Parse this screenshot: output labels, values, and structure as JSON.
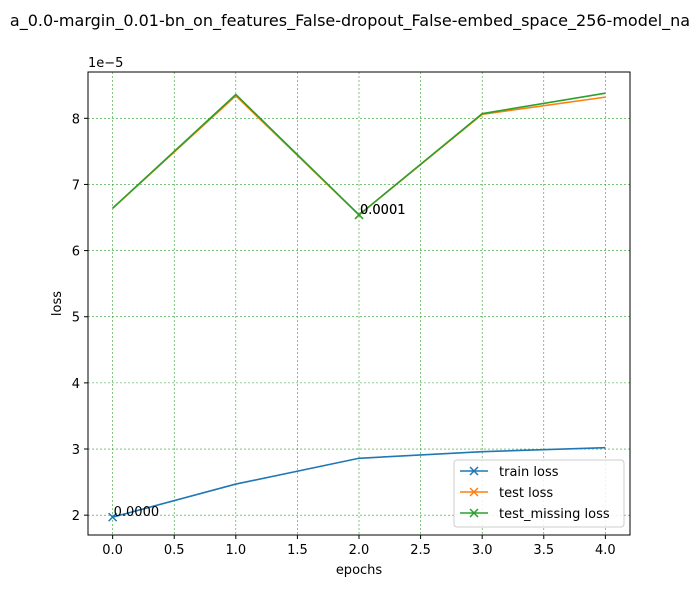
{
  "chart_data": {
    "type": "line",
    "title": "a_0.0-margin_0.01-bn_on_features_False-dropout_False-embed_space_256-model_na",
    "xlabel": "epochs",
    "ylabel": "loss",
    "y_exponent_label": "1e−5",
    "xlim": [
      -0.2,
      4.2
    ],
    "ylim": [
      1.7,
      8.7
    ],
    "y_scale_note": "values in units of 1e-5",
    "x_ticks": [
      0.0,
      0.5,
      1.0,
      1.5,
      2.0,
      2.5,
      3.0,
      3.5,
      4.0
    ],
    "x_tick_labels": [
      "0.0",
      "0.5",
      "1.0",
      "1.5",
      "2.0",
      "2.5",
      "3.0",
      "3.5",
      "4.0"
    ],
    "y_ticks": [
      2,
      3,
      4,
      5,
      6,
      7,
      8
    ],
    "y_tick_labels": [
      "2",
      "3",
      "4",
      "5",
      "6",
      "7",
      "8"
    ],
    "grid": true,
    "grid_color": "#2ca02c",
    "legend_position": "lower-right",
    "x": [
      0,
      1,
      2,
      3,
      4
    ],
    "series": [
      {
        "name": "train loss",
        "color": "#1f77b4",
        "values": [
          1.97,
          2.47,
          2.86,
          2.96,
          3.02
        ],
        "marker_index": 0
      },
      {
        "name": "test loss",
        "color": "#ff7f0e",
        "values": [
          6.64,
          8.34,
          6.54,
          8.06,
          8.32
        ],
        "marker_index": 2
      },
      {
        "name": "test_missing loss",
        "color": "#2ca02c",
        "values": [
          6.64,
          8.36,
          6.54,
          8.07,
          8.38
        ],
        "marker_index": 2
      }
    ],
    "annotations": [
      {
        "text": "0.0000",
        "x": 0,
        "y": 1.97
      },
      {
        "text": "0.0001",
        "x": 2,
        "y": 6.54
      },
      {
        "text": "0.0001",
        "x": 2,
        "y": 6.54
      }
    ]
  }
}
